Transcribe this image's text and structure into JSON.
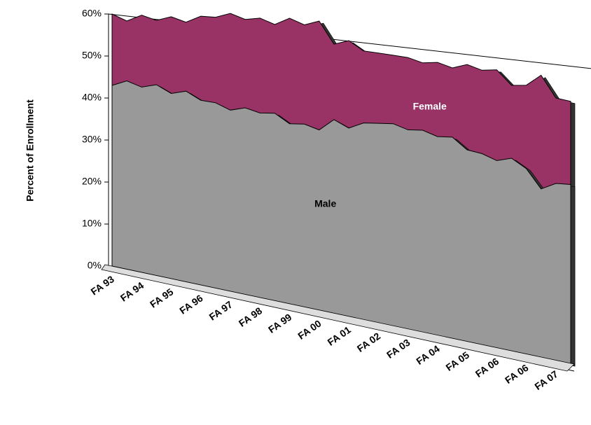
{
  "chart_data": {
    "type": "area",
    "ylabel": "Percent of Enrollment",
    "categories": [
      "FA 93",
      null,
      "FA 94",
      null,
      "FA 95",
      null,
      "FA 96",
      null,
      "FA 97",
      null,
      "FA 98",
      null,
      "FA 99",
      null,
      "FA 00",
      null,
      "FA 01",
      null,
      "FA 02",
      null,
      "FA 03",
      null,
      "FA 04",
      null,
      "FA 05",
      null,
      "FA 06",
      null,
      "FA 06",
      null,
      "FA 07",
      null
    ],
    "series": [
      {
        "name": "Female",
        "color": "#993366",
        "values": [
          60,
          58,
          59,
          57.5,
          58,
          56.5,
          57.5,
          57,
          57.5,
          56,
          56,
          54.5,
          55.5,
          54,
          54.5,
          50,
          50.5,
          48.5,
          48,
          47.5,
          47,
          46,
          46,
          45,
          45.5,
          44.5,
          44.5,
          42,
          42,
          43.5,
          40,
          39.5
        ]
      },
      {
        "name": "Male",
        "color": "#999999",
        "values": [
          43,
          44,
          42.5,
          43,
          41,
          41.5,
          39.5,
          39,
          37.5,
          38,
          37,
          37,
          35,
          35,
          34,
          36,
          34.5,
          35.5,
          35.5,
          35.5,
          34.5,
          34.5,
          33.5,
          33.5,
          31.5,
          31,
          30,
          30.5,
          29,
          26,
          27,
          27
        ]
      }
    ],
    "ylim": [
      0,
      60
    ],
    "yticks": [
      {
        "value": 0,
        "label": "0%"
      },
      {
        "value": 10,
        "label": "10%"
      },
      {
        "value": 20,
        "label": "20%"
      },
      {
        "value": 30,
        "label": "30%"
      },
      {
        "value": 40,
        "label": "40%"
      },
      {
        "value": 50,
        "label": "50%"
      },
      {
        "value": 60,
        "label": "60%"
      }
    ]
  }
}
